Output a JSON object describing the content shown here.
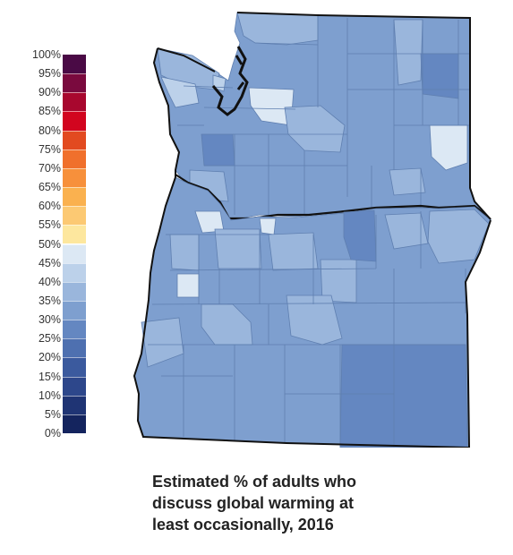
{
  "legend": {
    "ticks": [
      "100%",
      "95%",
      "90%",
      "85%",
      "80%",
      "75%",
      "70%",
      "65%",
      "60%",
      "55%",
      "50%",
      "45%",
      "40%",
      "35%",
      "30%",
      "25%",
      "20%",
      "15%",
      "10%",
      "5%",
      "0%"
    ],
    "bins": [
      {
        "from": 95,
        "to": 100,
        "color": "#4a0a45"
      },
      {
        "from": 90,
        "to": 95,
        "color": "#7a0a3e"
      },
      {
        "from": 85,
        "to": 90,
        "color": "#a8072e"
      },
      {
        "from": 80,
        "to": 85,
        "color": "#d2051f"
      },
      {
        "from": 75,
        "to": 80,
        "color": "#e24a20"
      },
      {
        "from": 70,
        "to": 75,
        "color": "#f0702c"
      },
      {
        "from": 65,
        "to": 70,
        "color": "#f7903b"
      },
      {
        "from": 60,
        "to": 65,
        "color": "#fab14f"
      },
      {
        "from": 55,
        "to": 60,
        "color": "#fcc973"
      },
      {
        "from": 50,
        "to": 55,
        "color": "#fde79e"
      },
      {
        "from": 45,
        "to": 50,
        "color": "#dce8f4"
      },
      {
        "from": 40,
        "to": 45,
        "color": "#bcd1ea"
      },
      {
        "from": 35,
        "to": 40,
        "color": "#9ab6dc"
      },
      {
        "from": 30,
        "to": 35,
        "color": "#7e9fcf"
      },
      {
        "from": 25,
        "to": 30,
        "color": "#6487c1"
      },
      {
        "from": 20,
        "to": 25,
        "color": "#4e70b0"
      },
      {
        "from": 15,
        "to": 20,
        "color": "#3b5a9e"
      },
      {
        "from": 10,
        "to": 15,
        "color": "#2d478b"
      },
      {
        "from": 5,
        "to": 10,
        "color": "#1f3474"
      },
      {
        "from": 0,
        "to": 5,
        "color": "#14245e"
      }
    ]
  },
  "map_colors": {
    "base": "#7e9fcf",
    "lighter": "#9ab6dc",
    "light": "#bcd1ea",
    "pale": "#dce8f4",
    "dark": "#6487c1",
    "border": "#5f7fb0",
    "outline": "#111111"
  },
  "caption": {
    "line1": "Estimated % of adults who",
    "line2": "discuss global warming at",
    "line3": "least occasionally, 2016"
  }
}
